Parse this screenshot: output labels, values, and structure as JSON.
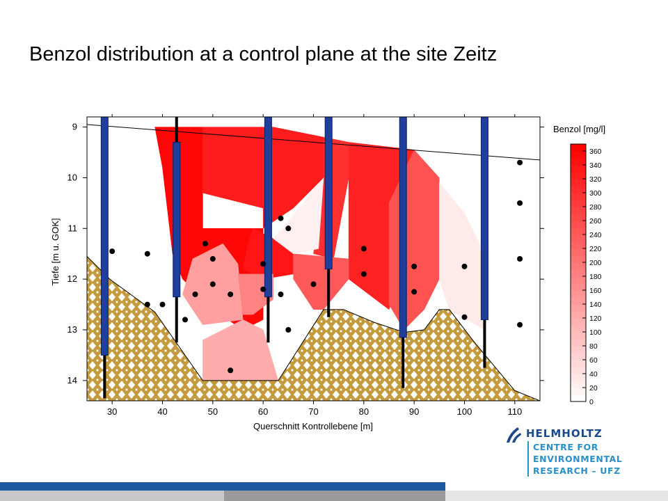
{
  "slide": {
    "title": "Benzol distribution at a control plane at the site Zeitz"
  },
  "logo": {
    "brand": "HELMHOLTZ",
    "lines": [
      "CENTRE FOR",
      "ENVIRONMENTAL",
      "RESEARCH – UFZ"
    ],
    "icon": "helmholtz-logo-icon",
    "brand_color": "#1a4a8c",
    "sub_color": "#2a90c8"
  },
  "chart_data": {
    "type": "heatmap",
    "title": "",
    "xlabel": "Querschnitt Kontrollebene [m]",
    "ylabel": "Tiefe [m u. GOK]",
    "xlim": [
      25,
      115
    ],
    "ylim": [
      8.8,
      14.4
    ],
    "y_inverted": true,
    "xticks": [
      30,
      40,
      50,
      60,
      70,
      80,
      90,
      100,
      110
    ],
    "yticks": [
      9,
      10,
      11,
      12,
      13,
      14
    ],
    "colorbar": {
      "title": "Benzol [mg/l]",
      "min": 0,
      "max": 370,
      "ticks": [
        0,
        20,
        40,
        60,
        80,
        100,
        120,
        140,
        160,
        180,
        200,
        220,
        240,
        260,
        280,
        300,
        320,
        340,
        360
      ],
      "low_color": "#ffffff",
      "high_color": "#ff0000"
    },
    "water_table": {
      "x": [
        25,
        115
      ],
      "y": [
        8.95,
        9.65
      ]
    },
    "aquitard": {
      "x": [
        25,
        29.5,
        38.5,
        48,
        56,
        63,
        72,
        76,
        82,
        88,
        92,
        95,
        97,
        102,
        110,
        115
      ],
      "y": [
        11.55,
        12.0,
        12.65,
        14.0,
        14.0,
        14.0,
        12.6,
        12.6,
        12.85,
        13.05,
        13.0,
        12.6,
        12.6,
        13.25,
        14.2,
        14.4
      ]
    },
    "regions": [
      {
        "value": 360,
        "x": [
          38.5,
          48,
          48,
          60,
          60,
          56,
          50,
          44,
          42,
          40
        ],
        "y": [
          9.0,
          9.0,
          11.0,
          11.0,
          12.8,
          13.0,
          12.6,
          12.0,
          11.5,
          9.8
        ]
      },
      {
        "value": 330,
        "x": [
          48,
          62,
          72,
          72,
          66,
          60,
          60,
          48
        ],
        "y": [
          9.0,
          9.0,
          9.2,
          10.0,
          10.6,
          11.0,
          10.6,
          10.3
        ]
      },
      {
        "value": 300,
        "x": [
          72,
          77,
          77,
          74,
          70,
          72
        ],
        "y": [
          9.2,
          9.3,
          10.0,
          11.6,
          11.5,
          10.0
        ]
      },
      {
        "value": 320,
        "x": [
          77,
          90,
          89,
          88,
          85,
          77
        ],
        "y": [
          9.3,
          9.45,
          10.8,
          11.8,
          12.6,
          12.0
        ]
      },
      {
        "value": 340,
        "x": [
          58,
          66,
          66,
          60,
          56,
          57
        ],
        "y": [
          11.0,
          11.4,
          11.9,
          12.0,
          11.8,
          11.3
        ]
      },
      {
        "value": 240,
        "x": [
          66,
          77,
          77,
          72,
          70,
          66
        ],
        "y": [
          11.5,
          11.6,
          12.0,
          12.6,
          12.6,
          12.0
        ]
      },
      {
        "value": 250,
        "x": [
          85,
          90,
          95,
          95,
          92,
          88,
          85
        ],
        "y": [
          10.5,
          9.45,
          10.0,
          12.0,
          12.6,
          13.0,
          12.5
        ]
      },
      {
        "value": 20,
        "x": [
          63,
          72,
          71,
          66,
          62
        ],
        "y": [
          11.1,
          10.0,
          11.4,
          11.5,
          11.2
        ]
      },
      {
        "value": 30,
        "x": [
          95,
          100,
          103,
          104,
          104,
          97,
          95
        ],
        "y": [
          10.1,
          10.7,
          11.3,
          12.0,
          13.0,
          12.6,
          12.0
        ]
      },
      {
        "value": 140,
        "x": [
          46,
          52,
          55,
          56,
          48,
          44
        ],
        "y": [
          11.6,
          11.3,
          11.7,
          12.8,
          12.9,
          12.3
        ]
      },
      {
        "value": 180,
        "x": [
          55,
          62,
          62,
          58,
          56
        ],
        "y": [
          11.9,
          11.9,
          12.4,
          12.7,
          12.7
        ]
      },
      {
        "value": 120,
        "x": [
          48,
          56,
          60,
          63,
          56,
          48
        ],
        "y": [
          13.2,
          12.8,
          13.0,
          14.0,
          14.0,
          14.0
        ]
      }
    ],
    "wells": [
      {
        "x": 28.5,
        "tube_top": 8.8,
        "tube_bottom": 13.5,
        "rod_bottom": 14.35
      },
      {
        "x": 42.8,
        "tube_top": 9.3,
        "tube_bottom": 12.35,
        "rod_top": 8.8,
        "rod_bottom": 13.25
      },
      {
        "x": 61.0,
        "tube_top": 8.8,
        "tube_bottom": 12.35,
        "rod_bottom": 13.25
      },
      {
        "x": 73.0,
        "tube_top": 8.8,
        "tube_bottom": 11.8,
        "rod_bottom": 12.75
      },
      {
        "x": 87.8,
        "tube_top": 8.8,
        "tube_bottom": 13.15,
        "rod_bottom": 14.15
      },
      {
        "x": 104.0,
        "tube_top": 8.8,
        "tube_bottom": 12.8,
        "rod_bottom": 13.75
      }
    ],
    "sample_points": [
      {
        "x": 30,
        "y": 11.45
      },
      {
        "x": 37,
        "y": 11.5
      },
      {
        "x": 37,
        "y": 12.5
      },
      {
        "x": 40,
        "y": 12.5
      },
      {
        "x": 44.5,
        "y": 12.8
      },
      {
        "x": 46.5,
        "y": 12.3
      },
      {
        "x": 48.5,
        "y": 11.3
      },
      {
        "x": 50,
        "y": 11.6
      },
      {
        "x": 50,
        "y": 12.1
      },
      {
        "x": 53.5,
        "y": 12.3
      },
      {
        "x": 53.5,
        "y": 13.8
      },
      {
        "x": 60,
        "y": 11.7
      },
      {
        "x": 60,
        "y": 12.2
      },
      {
        "x": 63.5,
        "y": 10.8
      },
      {
        "x": 63.5,
        "y": 12.3
      },
      {
        "x": 65,
        "y": 11.0
      },
      {
        "x": 65,
        "y": 13.0
      },
      {
        "x": 70,
        "y": 12.1
      },
      {
        "x": 80,
        "y": 11.4
      },
      {
        "x": 80,
        "y": 11.9
      },
      {
        "x": 90,
        "y": 11.75
      },
      {
        "x": 90,
        "y": 12.25
      },
      {
        "x": 100,
        "y": 11.75
      },
      {
        "x": 100,
        "y": 12.75
      },
      {
        "x": 111,
        "y": 9.7
      },
      {
        "x": 111,
        "y": 10.5
      },
      {
        "x": 111,
        "y": 11.6
      },
      {
        "x": 111,
        "y": 12.9
      }
    ]
  }
}
